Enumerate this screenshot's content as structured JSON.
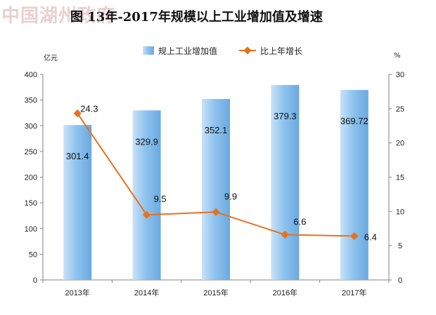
{
  "watermark": "中国湖州政府",
  "title": "图 13年-2017年规模以上工业增加值及增速",
  "chart_data": {
    "type": "bar+line",
    "categories": [
      "2013年",
      "2014年",
      "2015年",
      "2016年",
      "2017年"
    ],
    "series": [
      {
        "name": "规上工业增加值",
        "type": "bar",
        "axis": "left",
        "values": [
          301.4,
          329.9,
          352.1,
          379.3,
          369.72
        ],
        "labels": [
          "301.4",
          "329.9",
          "352.1",
          "379.3",
          "369.72"
        ],
        "color": "#8fc3ee"
      },
      {
        "name": "比上年增长",
        "type": "line",
        "axis": "right",
        "values": [
          24.3,
          9.5,
          9.9,
          6.6,
          6.4
        ],
        "labels": [
          "24.3",
          "9.5",
          "9.9",
          "6.6",
          "6.4"
        ],
        "color": "#e8711c"
      }
    ],
    "y_left": {
      "unit": "亿元",
      "min": 0,
      "max": 400,
      "step": 50,
      "ticks": [
        "0",
        "50",
        "100",
        "150",
        "200",
        "250",
        "300",
        "350",
        "400"
      ]
    },
    "y_right": {
      "unit": "%",
      "min": 0,
      "max": 30,
      "step": 5,
      "ticks": [
        "0",
        "5",
        "10",
        "15",
        "20",
        "25",
        "30"
      ]
    },
    "legend_position": "top",
    "grid": false
  }
}
